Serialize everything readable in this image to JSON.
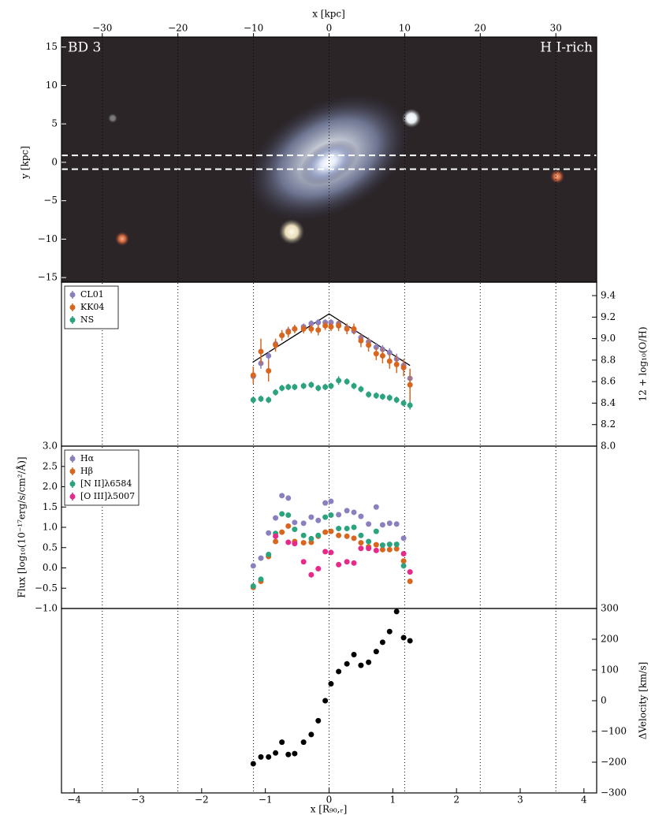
{
  "chart_data": [
    {
      "type": "image",
      "x_label": "x [kpc]",
      "y_label": "y [kpc]",
      "xlim": [
        -35.4,
        35.4
      ],
      "xticks": [
        {
          "value": -30,
          "label": "−30"
        },
        {
          "value": -20,
          "label": "−20"
        },
        {
          "value": -10,
          "label": "−10"
        },
        0,
        10,
        20,
        30
      ],
      "ylim": [
        -15.6,
        16.3
      ],
      "yticks": [
        {
          "value": -15,
          "label": "−15"
        },
        {
          "value": -10,
          "label": "−10"
        },
        {
          "value": -5,
          "label": "−5"
        },
        0,
        5,
        10,
        15
      ],
      "annotations": [
        "BD 3",
        "H I-rich"
      ],
      "slit_y": [
        -0.9,
        0.9
      ],
      "grid": true
    },
    {
      "type": "scatter",
      "y_label": "12 + log₁₀(O/H)",
      "xlim": [
        -4.2,
        4.2
      ],
      "ylim": [
        8.0,
        9.525
      ],
      "yticks": [
        {
          "value": 8.0,
          "label": "8.0"
        },
        8.2,
        8.4,
        8.6,
        8.8,
        {
          "value": 9.0,
          "label": "9.0"
        },
        9.2,
        9.4
      ],
      "x": [
        -1.19,
        -1.07,
        -0.95,
        -0.84,
        -0.74,
        -0.64,
        -0.54,
        -0.4,
        -0.28,
        -0.17,
        -0.06,
        0.03,
        0.15,
        0.28,
        0.39,
        0.5,
        0.62,
        0.74,
        0.84,
        0.95,
        1.06,
        1.17,
        1.27
      ],
      "series": [
        {
          "name": "CL01",
          "color": "#8c7fbf",
          "values": [
            8.65,
            8.77,
            8.84,
            8.95,
            9.03,
            9.07,
            9.09,
            9.11,
            9.14,
            9.15,
            9.15,
            9.15,
            9.14,
            9.1,
            9.07,
            9.01,
            8.97,
            8.92,
            8.9,
            8.87,
            8.81,
            8.75,
            8.63
          ],
          "errors": [
            0.05,
            0.05,
            0.04,
            0.04,
            0.03,
            0.03,
            0.03,
            0.03,
            0.03,
            0.03,
            0.03,
            0.03,
            0.03,
            0.03,
            0.03,
            0.03,
            0.04,
            0.04,
            0.04,
            0.04,
            0.05,
            0.05,
            0.06
          ]
        },
        {
          "name": "KK04",
          "color": "#d9661f",
          "values": [
            8.66,
            8.88,
            8.7,
            8.94,
            9.03,
            9.06,
            9.09,
            9.09,
            9.09,
            9.08,
            9.12,
            9.11,
            9.12,
            9.09,
            9.09,
            8.98,
            8.94,
            8.86,
            8.84,
            8.79,
            8.76,
            8.73,
            8.57
          ],
          "errors": [
            0.08,
            0.12,
            0.1,
            0.06,
            0.05,
            0.05,
            0.04,
            0.04,
            0.04,
            0.05,
            0.04,
            0.04,
            0.05,
            0.05,
            0.05,
            0.06,
            0.06,
            0.06,
            0.07,
            0.07,
            0.08,
            0.08,
            0.15
          ]
        },
        {
          "name": "NS",
          "color": "#2ca37f",
          "values": [
            8.43,
            8.44,
            8.43,
            8.5,
            8.54,
            8.55,
            8.55,
            8.56,
            8.57,
            8.54,
            8.55,
            8.56,
            8.61,
            8.6,
            8.56,
            8.53,
            8.48,
            8.47,
            8.46,
            8.45,
            8.43,
            8.4,
            8.38
          ],
          "errors": [
            0.03,
            0.03,
            0.03,
            0.03,
            0.03,
            0.03,
            0.03,
            0.03,
            0.03,
            0.03,
            0.03,
            0.03,
            0.04,
            0.03,
            0.03,
            0.03,
            0.03,
            0.03,
            0.03,
            0.03,
            0.03,
            0.03,
            0.04
          ]
        }
      ],
      "fit": {
        "x": [
          -1.2,
          0,
          1.27
        ],
        "y": [
          8.78,
          9.23,
          8.75
        ],
        "color": "#000000"
      },
      "legend": "upper left"
    },
    {
      "type": "scatter",
      "y_label": "Flux [log₁₀(10⁻¹⁷erg/s/cm²/Å)]",
      "xlim": [
        -4.2,
        4.2
      ],
      "ylim": [
        -1.0,
        3.0
      ],
      "yticks": [
        {
          "value": -1.0,
          "label": "−1.0"
        },
        {
          "value": -0.5,
          "label": "−0.5"
        },
        {
          "value": 0.0,
          "label": "0.0"
        },
        0.5,
        {
          "value": 1.0,
          "label": "1.0"
        },
        1.5,
        {
          "value": 2.0,
          "label": "2.0"
        },
        2.5,
        {
          "value": 3.0,
          "label": "3.0"
        }
      ],
      "x": [
        -1.19,
        -1.07,
        -0.95,
        -0.84,
        -0.74,
        -0.64,
        -0.54,
        -0.4,
        -0.28,
        -0.17,
        -0.06,
        0.03,
        0.15,
        0.28,
        0.39,
        0.5,
        0.62,
        0.74,
        0.84,
        0.95,
        1.06,
        1.17,
        1.27
      ],
      "series": [
        {
          "name": "Hα",
          "color": "#8c7fbf",
          "values": [
            0.05,
            0.24,
            0.86,
            1.23,
            1.78,
            1.72,
            1.12,
            1.1,
            1.25,
            1.17,
            1.6,
            1.64,
            1.31,
            1.41,
            1.37,
            1.27,
            1.08,
            1.5,
            1.06,
            1.1,
            1.08,
            0.73,
            null
          ]
        },
        {
          "name": "Hβ",
          "color": "#d9661f",
          "values": [
            -0.48,
            -0.33,
            0.28,
            0.65,
            0.88,
            1.03,
            0.65,
            0.62,
            0.63,
            0.78,
            0.88,
            0.9,
            0.8,
            0.78,
            0.73,
            0.62,
            0.52,
            0.57,
            0.45,
            0.45,
            0.47,
            0.17,
            -0.33
          ]
        },
        {
          "name": "[N II]λ6584",
          "color": "#2ca37f",
          "values": [
            -0.45,
            -0.28,
            0.33,
            0.85,
            1.33,
            1.3,
            0.95,
            0.8,
            0.72,
            0.8,
            1.25,
            1.3,
            0.97,
            0.97,
            1.0,
            0.8,
            0.65,
            0.9,
            0.56,
            0.58,
            0.58,
            0.05,
            null
          ]
        },
        {
          "name": "[O III]λ5007",
          "color": "#e7298a",
          "values": [
            null,
            null,
            null,
            0.78,
            null,
            0.63,
            0.6,
            0.15,
            -0.17,
            -0.02,
            0.4,
            0.38,
            0.08,
            0.15,
            0.12,
            0.48,
            0.48,
            0.43,
            null,
            null,
            null,
            0.35,
            -0.1
          ]
        }
      ],
      "legend": "upper left"
    },
    {
      "type": "scatter",
      "y_label": "ΔVelocity [km/s]",
      "x_label": "x [R₉₀,ᵣ]",
      "xlim": [
        -4.2,
        4.2
      ],
      "xticks": [
        {
          "value": -4,
          "label": "−4"
        },
        {
          "value": -3,
          "label": "−3"
        },
        {
          "value": -2,
          "label": "−2"
        },
        {
          "value": -1,
          "label": "−1"
        },
        0,
        1,
        2,
        3,
        4
      ],
      "ylim": [
        -300,
        300
      ],
      "yticks": [
        {
          "value": -300,
          "label": "−300"
        },
        {
          "value": -200,
          "label": "−200"
        },
        {
          "value": -100,
          "label": "−100"
        },
        0,
        100,
        200,
        300
      ],
      "x": [
        -1.19,
        -1.07,
        -0.95,
        -0.84,
        -0.74,
        -0.64,
        -0.54,
        -0.4,
        -0.28,
        -0.17,
        -0.06,
        0.03,
        0.15,
        0.28,
        0.39,
        0.5,
        0.62,
        0.74,
        0.84,
        0.95,
        1.06,
        1.17,
        1.27
      ],
      "values": [
        -205,
        -183,
        -183,
        -170,
        -135,
        -175,
        -172,
        -135,
        -110,
        -65,
        0,
        55,
        95,
        120,
        150,
        115,
        125,
        160,
        190,
        225,
        290,
        205,
        195
      ],
      "color": "#000000"
    }
  ]
}
